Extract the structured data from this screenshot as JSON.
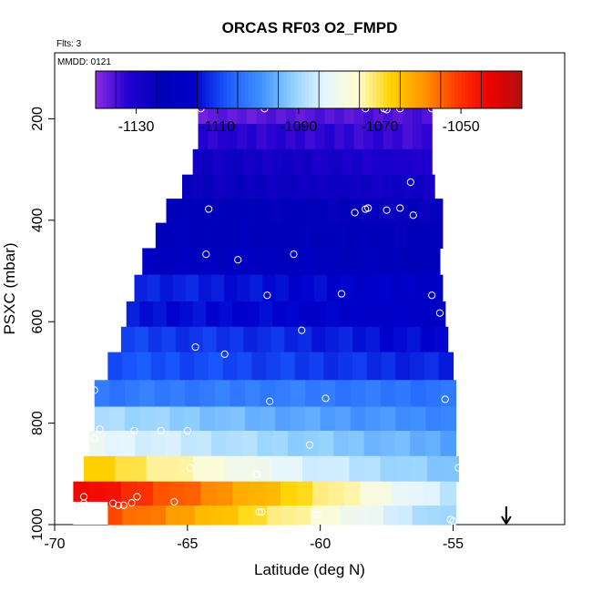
{
  "chart_data": {
    "type": "heatmap",
    "title": "ORCAS RF03 O2_FMPD",
    "flights_note": "Flts: 3",
    "date_note": "MMDD: 0121",
    "xlabel": "Latitude (deg N)",
    "ylabel": "PSXC (mbar)",
    "xlim": [
      -70,
      -50.8
    ],
    "ylim": [
      1000,
      70
    ],
    "y_reversed": true,
    "grid": false,
    "x_ticks": [
      -70,
      -65,
      -60,
      -55
    ],
    "x_tick_labels": [
      "-70",
      "-65",
      "-60",
      "-55"
    ],
    "y_ticks": [
      200,
      400,
      600,
      800,
      1000
    ],
    "y_tick_labels": [
      "200",
      "400",
      "600",
      "800",
      "1000"
    ],
    "colorbar": {
      "placement": "top",
      "range": [
        -1140,
        -1035
      ],
      "ticks": [
        -1130,
        -1110,
        -1090,
        -1070,
        -1050
      ],
      "tick_labels": [
        "-1130",
        "-1110",
        "-1090",
        "-1070",
        "-1050"
      ],
      "colors": [
        "#8a2be2",
        "#2200d0",
        "#0000b8",
        "#0000cc",
        "#1a5aff",
        "#3e8eff",
        "#8fd0ff",
        "#e6f6ff",
        "#fffcd0",
        "#ffd400",
        "#ff9500",
        "#ff3b00",
        "#ee0000",
        "#b01010"
      ]
    },
    "layers": [
      {
        "p": 185,
        "x0": -64.6,
        "x1": -55.8,
        "v": [
          -1137,
          -1136,
          -1135
        ]
      },
      {
        "p": 235,
        "x0": -64.6,
        "x1": -55.8,
        "v": [
          -1132,
          -1133,
          -1134
        ]
      },
      {
        "p": 285,
        "x0": -64.8,
        "x1": -55.8,
        "v": [
          -1127,
          -1129,
          -1131
        ]
      },
      {
        "p": 335,
        "x0": -65.2,
        "x1": -55.7,
        "v": [
          -1126,
          -1127,
          -1128
        ]
      },
      {
        "p": 380,
        "x0": -65.8,
        "x1": -55.4,
        "v": [
          -1123,
          -1124,
          -1126
        ]
      },
      {
        "p": 430,
        "x0": -66.2,
        "x1": -55.4,
        "v": [
          -1122,
          -1123,
          -1124
        ]
      },
      {
        "p": 480,
        "x0": -66.7,
        "x1": -55.5,
        "v": [
          -1120,
          -1121,
          -1123
        ]
      },
      {
        "p": 535,
        "x0": -67.0,
        "x1": -55.4,
        "v": [
          -1112,
          -1115,
          -1118
        ]
      },
      {
        "p": 585,
        "x0": -67.3,
        "x1": -55.3,
        "v": [
          -1114,
          -1116,
          -1118
        ]
      },
      {
        "p": 635,
        "x0": -67.5,
        "x1": -55.2,
        "v": [
          -1110,
          -1112,
          -1116
        ]
      },
      {
        "p": 685,
        "x0": -68.0,
        "x1": -55.0,
        "v": [
          -1108,
          -1110,
          -1113
        ]
      },
      {
        "p": 745,
        "x0": -68.5,
        "x1": -54.9,
        "v": [
          -1103,
          -1102,
          -1104
        ]
      },
      {
        "p": 790,
        "x0": -68.5,
        "x1": -54.9,
        "v": [
          -1088,
          -1096,
          -1101
        ]
      },
      {
        "p": 840,
        "x0": -68.7,
        "x1": -54.9,
        "v": [
          -1082,
          -1090,
          -1097
        ]
      },
      {
        "p": 890,
        "x0": -68.9,
        "x1": -54.8,
        "v": [
          -1066,
          -1082,
          -1094
        ]
      },
      {
        "p": 940,
        "x0": -69.3,
        "x1": -54.9,
        "v": [
          -1042,
          -1064,
          -1088
        ]
      },
      {
        "p": 985,
        "x0": -68.0,
        "x1": -54.9,
        "v": [
          -1052,
          -1072,
          -1092
        ]
      }
    ],
    "white_gap": {
      "x0": -69.3,
      "x1": -68.0,
      "p0": 955,
      "p1": 1000
    },
    "points": [
      [
        -64.5,
        180
      ],
      [
        -62.1,
        180
      ],
      [
        -58.3,
        180
      ],
      [
        -57.6,
        180
      ],
      [
        -57.5,
        182
      ],
      [
        -57.0,
        180
      ],
      [
        -55.8,
        180
      ],
      [
        -56.6,
        325
      ],
      [
        -64.2,
        378
      ],
      [
        -58.7,
        385
      ],
      [
        -58.3,
        378
      ],
      [
        -58.2,
        376
      ],
      [
        -57.5,
        380
      ],
      [
        -57.0,
        376
      ],
      [
        -56.5,
        390
      ],
      [
        -64.3,
        467
      ],
      [
        -63.1,
        478
      ],
      [
        -61.0,
        467
      ],
      [
        -62.0,
        548
      ],
      [
        -59.2,
        545
      ],
      [
        -55.8,
        548
      ],
      [
        -55.5,
        583
      ],
      [
        -60.7,
        617
      ],
      [
        -64.7,
        650
      ],
      [
        -63.6,
        664
      ],
      [
        -68.5,
        735
      ],
      [
        -61.9,
        757
      ],
      [
        -59.8,
        751
      ],
      [
        -55.3,
        753
      ],
      [
        -68.3,
        812
      ],
      [
        -68.5,
        830
      ],
      [
        -67.0,
        815
      ],
      [
        -66.0,
        815
      ],
      [
        -65.0,
        815
      ],
      [
        -60.4,
        843
      ],
      [
        -64.9,
        888
      ],
      [
        -62.4,
        901
      ],
      [
        -54.8,
        888
      ],
      [
        -68.9,
        945
      ],
      [
        -68.9,
        958
      ],
      [
        -67.8,
        958
      ],
      [
        -67.6,
        962
      ],
      [
        -67.4,
        962
      ],
      [
        -67.1,
        957
      ],
      [
        -66.9,
        945
      ],
      [
        -65.5,
        955
      ],
      [
        -62.3,
        975
      ],
      [
        -62.2,
        975
      ],
      [
        -60.2,
        980
      ],
      [
        -60.1,
        980
      ],
      [
        -55.1,
        990
      ],
      [
        -55.0,
        993
      ]
    ],
    "arrow_marker_x": -53.0
  }
}
